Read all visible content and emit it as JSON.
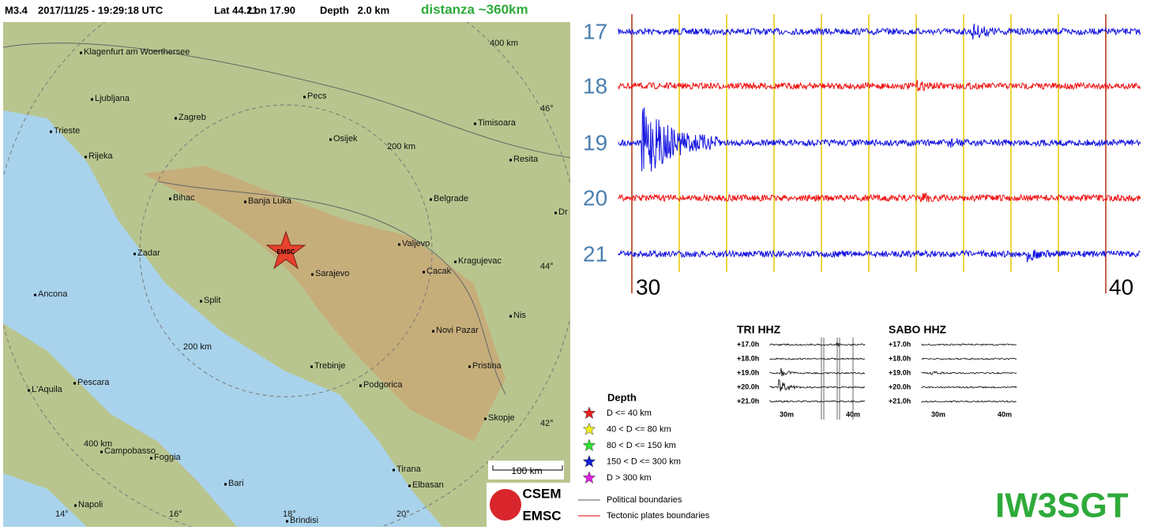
{
  "header": {
    "magnitude": "M3.4",
    "datetime": "2017/11/25 - 19:29:18 UTC",
    "lat": "Lat 44.21",
    "lon": "Lon 17.90",
    "depth": "Depth   2.0 km",
    "distance": "distanza ~360km"
  },
  "map": {
    "cities": [
      "Klagenfurt am Woerthersee",
      "Ljubljana",
      "Zagreb",
      "Pecs",
      "Trieste",
      "Rijeka",
      "Osijek",
      "Timisoara",
      "Resita",
      "Bihac",
      "Banja Luka",
      "Belgrade",
      "Dr",
      "Zadar",
      "Valjevo",
      "Kragujevac",
      "Cacak",
      "Sarajevo",
      "Ancona",
      "Split",
      "Nis",
      "Novi Pazar",
      "Trebinje",
      "Pristina",
      "Pescara",
      "Podgorica",
      "L'Aquila",
      "Skopje",
      "Campobasso",
      "Foggia",
      "Tirana",
      "Bari",
      "Elbasan",
      "Napoli",
      "Brindisi"
    ],
    "lat_labels": [
      "46°",
      "44°",
      "42°"
    ],
    "lon_labels": [
      "14°",
      "16°",
      "18°",
      "20°"
    ],
    "ring_labels": [
      "400 km",
      "200 km",
      "200 km",
      "400 km"
    ],
    "scale": "100 km",
    "epicenter": "EMSC"
  },
  "legend": {
    "title": "Depth",
    "items": [
      "D <= 40 km",
      "40 < D <= 80 km",
      "80 < D <= 150 km",
      "150 < D <= 300 km",
      "D > 300 km"
    ],
    "boundaries": [
      "Political boundaries",
      "Tectonic plates boundaries"
    ]
  },
  "logo": {
    "top": "CSEM",
    "bottom": "EMSC"
  },
  "seismogram": {
    "hours": [
      "17",
      "18",
      "19",
      "20",
      "21"
    ],
    "minutes": [
      "30",
      "40"
    ]
  },
  "stations": [
    {
      "name": "TRI HHZ",
      "rows": [
        "+17.0h",
        "+18.0h",
        "+19.0h",
        "+20.0h",
        "+21.0h"
      ],
      "ticks": [
        "30m",
        "40m"
      ]
    },
    {
      "name": "SABO HHZ",
      "rows": [
        "+17.0h",
        "+18.0h",
        "+19.0h",
        "+20.0h",
        "+21.0h"
      ],
      "ticks": [
        "30m",
        "40m"
      ]
    }
  ],
  "callsign": "IW3SGT"
}
